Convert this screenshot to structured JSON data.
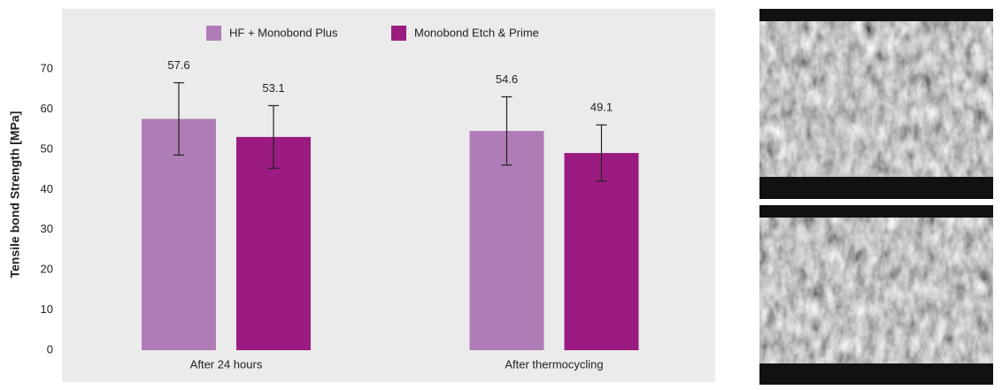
{
  "chart_data": {
    "type": "bar",
    "y_label": "Tensile bond Strength [MPa]",
    "categories": [
      "After 24 hours",
      "After thermocycling"
    ],
    "series": [
      {
        "name": "HF + Monobond Plus",
        "color": "#b07cb7",
        "values": [
          57.6,
          54.6
        ],
        "errors": [
          9.0,
          8.5
        ]
      },
      {
        "name": "Monobond Etch & Prime",
        "color": "#9b1b80",
        "values": [
          53.1,
          49.1
        ],
        "errors": [
          7.8,
          7.0
        ]
      }
    ],
    "ylim": [
      0,
      85
    ],
    "yticks": [
      0,
      10,
      20,
      30,
      40,
      50,
      60,
      70
    ],
    "grid": false
  }
}
